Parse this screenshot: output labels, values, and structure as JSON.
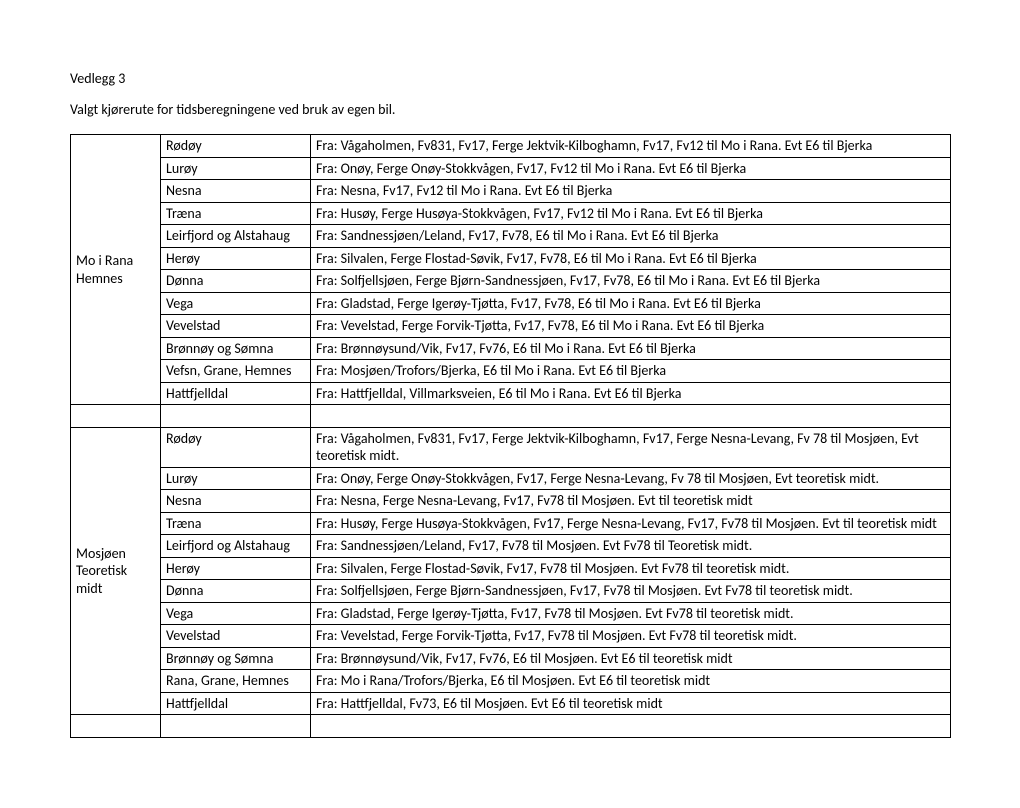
{
  "title": "Vedlegg 3",
  "subtitle": "Valgt kjørerute for tidsberegningene ved bruk av egen bil.",
  "sections": [
    {
      "group": "Mo i Rana Hemnes",
      "rows": [
        {
          "place": "Rødøy",
          "route": "Fra: Vågaholmen, Fv831, Fv17, Ferge Jektvik-Kilboghamn, Fv17, Fv12 til Mo i Rana. Evt E6 til Bjerka"
        },
        {
          "place": "Lurøy",
          "route": "Fra: Onøy, Ferge Onøy-Stokkvågen, Fv17, Fv12 til Mo i Rana. Evt E6 til Bjerka"
        },
        {
          "place": "Nesna",
          "route": "Fra: Nesna, Fv17, Fv12 til Mo i Rana. Evt E6 til Bjerka"
        },
        {
          "place": "Træna",
          "route": "Fra: Husøy, Ferge Husøya-Stokkvågen, Fv17, Fv12 til Mo i Rana. Evt E6 til Bjerka"
        },
        {
          "place": "Leirfjord og Alstahaug",
          "route": "Fra: Sandnessjøen/Leland, Fv17, Fv78, E6 til Mo i Rana. Evt E6 til Bjerka"
        },
        {
          "place": "Herøy",
          "route": "Fra: Silvalen, Ferge Flostad-Søvik, Fv17, Fv78, E6 til Mo i Rana. Evt E6 til Bjerka"
        },
        {
          "place": "Dønna",
          "route": "Fra: Solfjellsjøen, Ferge Bjørn-Sandnessjøen, Fv17, Fv78, E6 til Mo i Rana. Evt E6 til Bjerka"
        },
        {
          "place": "Vega",
          "route": "Fra: Gladstad, Ferge Igerøy-Tjøtta, Fv17, Fv78, E6 til Mo i Rana. Evt E6 til Bjerka"
        },
        {
          "place": "Vevelstad",
          "route": "Fra: Vevelstad, Ferge Forvik-Tjøtta, Fv17, Fv78, E6 til Mo i Rana. Evt E6 til Bjerka"
        },
        {
          "place": "Brønnøy og Sømna",
          "route": "Fra: Brønnøysund/Vik, Fv17, Fv76, E6 til Mo i Rana. Evt E6 til Bjerka"
        },
        {
          "place": "Vefsn, Grane, Hemnes",
          "route": "Fra: Mosjøen/Trofors/Bjerka, E6 til Mo i Rana. Evt E6 til Bjerka"
        },
        {
          "place": "Hattfjelldal",
          "route": "Fra: Hattfjelldal, Villmarksveien, E6 til Mo i Rana. Evt E6 til Bjerka"
        }
      ]
    },
    {
      "group": "Mosjøen Teoretisk midt",
      "rows": [
        {
          "place": "Rødøy",
          "route": "Fra: Vågaholmen, Fv831, Fv17, Ferge Jektvik-Kilboghamn, Fv17, Ferge Nesna-Levang, Fv 78 til Mosjøen, Evt teoretisk midt."
        },
        {
          "place": "Lurøy",
          "route": "Fra: Onøy, Ferge Onøy-Stokkvågen, Fv17, Ferge Nesna-Levang, Fv 78 til Mosjøen, Evt teoretisk midt."
        },
        {
          "place": "Nesna",
          "route": "Fra: Nesna, Ferge Nesna-Levang, Fv17, Fv78 til Mosjøen. Evt til teoretisk midt"
        },
        {
          "place": "Træna",
          "route": "Fra: Husøy, Ferge Husøya-Stokkvågen, Fv17, Ferge Nesna-Levang, Fv17, Fv78 til Mosjøen. Evt til teoretisk midt"
        },
        {
          "place": "Leirfjord og Alstahaug",
          "route": "Fra: Sandnessjøen/Leland, Fv17, Fv78 til Mosjøen. Evt Fv78 til Teoretisk midt."
        },
        {
          "place": "Herøy",
          "route": "Fra: Silvalen, Ferge Flostad-Søvik, Fv17, Fv78 til Mosjøen. Evt Fv78 til teoretisk midt."
        },
        {
          "place": "Dønna",
          "route": "Fra: Solfjellsjøen, Ferge Bjørn-Sandnessjøen, Fv17, Fv78 til Mosjøen. Evt Fv78 til teoretisk midt."
        },
        {
          "place": "Vega",
          "route": "Fra: Gladstad, Ferge Igerøy-Tjøtta, Fv17, Fv78 til Mosjøen. Evt Fv78 til teoretisk midt."
        },
        {
          "place": "Vevelstad",
          "route": "Fra: Vevelstad, Ferge Forvik-Tjøtta, Fv17, Fv78 til Mosjøen. Evt Fv78 til teoretisk midt."
        },
        {
          "place": "Brønnøy og Sømna",
          "route": "Fra: Brønnøysund/Vik, Fv17, Fv76, E6 til Mosjøen. Evt E6 til teoretisk midt"
        },
        {
          "place": "Rana, Grane, Hemnes",
          "route": "Fra: Mo i Rana/Trofors/Bjerka, E6 til Mosjøen. Evt E6 til teoretisk midt"
        },
        {
          "place": "Hattfjelldal",
          "route": "Fra: Hattfjelldal, Fv73, E6 til Mosjøen. Evt E6 til teoretisk midt"
        }
      ]
    }
  ]
}
